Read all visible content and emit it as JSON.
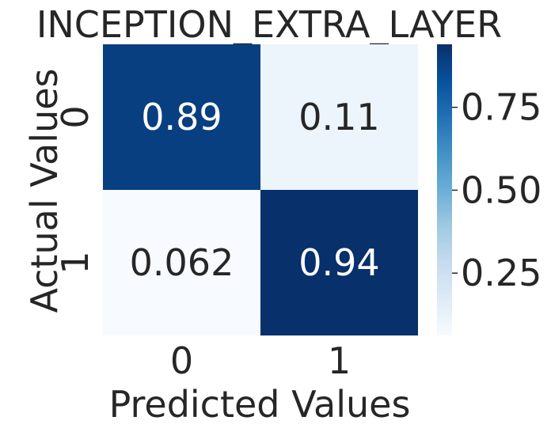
{
  "chart_data": {
    "type": "heatmap",
    "title": "INCEPTION_EXTRA_LAYER",
    "xlabel": "Predicted Values",
    "ylabel": "Actual Values",
    "x_categories": [
      "0",
      "1"
    ],
    "y_categories": [
      "0",
      "1"
    ],
    "values": [
      [
        0.89,
        0.11
      ],
      [
        0.062,
        0.94
      ]
    ],
    "cell_labels": [
      [
        "0.89",
        "0.11"
      ],
      [
        "0.062",
        "0.94"
      ]
    ],
    "colormap": "Blues",
    "colorbar": {
      "range": [
        0.062,
        0.94
      ],
      "ticks": [
        0.25,
        0.5,
        0.75
      ],
      "tick_labels": [
        "0.25",
        "0.50",
        "0.75"
      ]
    }
  }
}
